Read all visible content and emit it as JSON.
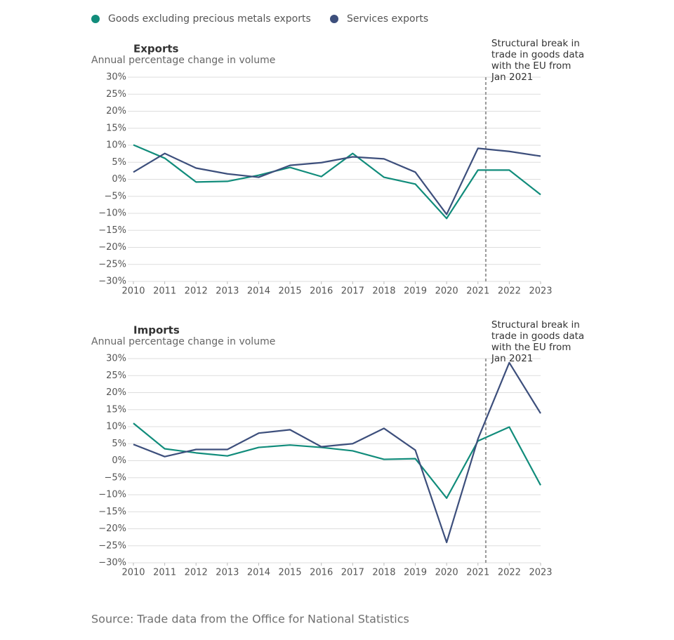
{
  "source": "Source: Trade data from the Office for National Statistics",
  "chart_data": [
    {
      "type": "line",
      "title": "Exports",
      "subtitle": "Annual percentage change in volume",
      "x": [
        2010,
        2011,
        2012,
        2013,
        2014,
        2015,
        2016,
        2017,
        2018,
        2019,
        2020,
        2021,
        2022,
        2023
      ],
      "series": [
        {
          "name": "Goods excluding precious metals exports",
          "color": "#118c7b",
          "values": [
            10.1,
            6.2,
            -0.8,
            -0.6,
            1.2,
            3.5,
            0.8,
            7.6,
            0.6,
            -1.4,
            -11.5,
            2.7,
            2.7,
            -4.5
          ]
        },
        {
          "name": "Services exports",
          "color": "#3d4f7c",
          "values": [
            2.1,
            7.6,
            3.3,
            1.6,
            0.6,
            4.1,
            4.9,
            6.6,
            6.0,
            2.1,
            -10.3,
            9.1,
            8.2,
            6.8
          ]
        }
      ],
      "xlim": [
        2010,
        2023
      ],
      "xticks": [
        2010,
        2011,
        2012,
        2013,
        2014,
        2015,
        2016,
        2017,
        2018,
        2019,
        2020,
        2021,
        2022,
        2023
      ],
      "ylim": [
        -30,
        30
      ],
      "yticks": [
        {
          "value": -30,
          "label": "−30%"
        },
        {
          "value": -25,
          "label": "−25%"
        },
        {
          "value": -20,
          "label": "−20%"
        },
        {
          "value": -15,
          "label": "−15%"
        },
        {
          "value": -10,
          "label": "−10%"
        },
        {
          "value": -5,
          "label": "−5%"
        },
        {
          "value": 0,
          "label": "0%"
        },
        {
          "value": 5,
          "label": "5%"
        },
        {
          "value": 10,
          "label": "10%"
        },
        {
          "value": 15,
          "label": "15%"
        },
        {
          "value": 20,
          "label": "20%"
        },
        {
          "value": 25,
          "label": "25%"
        },
        {
          "value": 30,
          "label": "30%"
        }
      ],
      "grid": true,
      "annotation": {
        "x": 2021.25,
        "lines": [
          "Structural break in",
          "trade in goods data",
          "with the EU from",
          "Jan 2021"
        ]
      }
    },
    {
      "type": "line",
      "title": "Imports",
      "subtitle": "Annual percentage change in volume",
      "x": [
        2010,
        2011,
        2012,
        2013,
        2014,
        2015,
        2016,
        2017,
        2018,
        2019,
        2020,
        2021,
        2022,
        2023
      ],
      "series": [
        {
          "color": "#118c7b",
          "values": [
            11.0,
            3.5,
            2.3,
            1.4,
            3.9,
            4.6,
            3.9,
            2.9,
            0.4,
            0.6,
            -11.0,
            5.8,
            9.9,
            -7.2
          ]
        },
        {
          "color": "#3d4f7c",
          "values": [
            4.8,
            1.2,
            3.3,
            3.3,
            8.1,
            9.1,
            4.1,
            5.0,
            9.5,
            3.1,
            -24.0,
            6.4,
            28.8,
            13.9
          ]
        }
      ],
      "xlim": [
        2010,
        2023
      ],
      "xticks": [
        2010,
        2011,
        2012,
        2013,
        2014,
        2015,
        2016,
        2017,
        2018,
        2019,
        2020,
        2021,
        2022,
        2023
      ],
      "ylim": [
        -30,
        30
      ],
      "yticks": [
        {
          "value": -30,
          "label": "−30%"
        },
        {
          "value": -25,
          "label": "−25%"
        },
        {
          "value": -20,
          "label": "−20%"
        },
        {
          "value": -15,
          "label": "−15%"
        },
        {
          "value": -10,
          "label": "−10%"
        },
        {
          "value": -5,
          "label": "−5%"
        },
        {
          "value": 0,
          "label": "0%"
        },
        {
          "value": 5,
          "label": "5%"
        },
        {
          "value": 10,
          "label": "10%"
        },
        {
          "value": 15,
          "label": "15%"
        },
        {
          "value": 20,
          "label": "20%"
        },
        {
          "value": 25,
          "label": "25%"
        },
        {
          "value": 30,
          "label": "30%"
        }
      ],
      "grid": true,
      "annotation": {
        "x": 2021.25,
        "lines": [
          "Structural break in",
          "trade in goods data",
          "with the EU from",
          "Jan 2021"
        ]
      }
    }
  ]
}
